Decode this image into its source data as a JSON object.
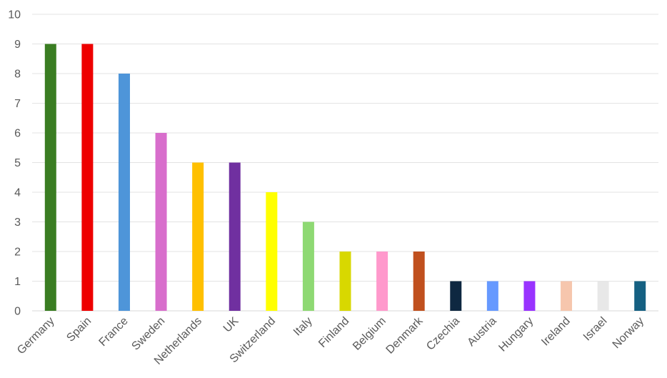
{
  "chart_data": {
    "type": "bar",
    "title": "",
    "xlabel": "",
    "ylabel": "",
    "ylim": [
      0,
      10
    ],
    "yticks": [
      0,
      1,
      2,
      3,
      4,
      5,
      6,
      7,
      8,
      9,
      10
    ],
    "grid": true,
    "legend": "none",
    "categories": [
      "Germany",
      "Spain",
      "France",
      "Sweden",
      "Netherlands",
      "UK",
      "Switzerland",
      "Italy",
      "Finland",
      "Belgium",
      "Denmark",
      "Czechia",
      "Austria",
      "Hungary",
      "Ireland",
      "Israel",
      "Norway"
    ],
    "values": [
      9,
      9,
      8,
      6,
      5,
      5,
      4,
      3,
      2,
      2,
      2,
      1,
      1,
      1,
      1,
      1,
      1
    ],
    "colors": [
      "#3a7d22",
      "#ee0000",
      "#4e95d9",
      "#d86ecc",
      "#ffc000",
      "#7030a0",
      "#ffff00",
      "#8ed973",
      "#d8d800",
      "#ff99cc",
      "#c0501e",
      "#0e2841",
      "#6699ff",
      "#9933ff",
      "#f6c6ad",
      "#e8e8e8",
      "#156082"
    ]
  }
}
